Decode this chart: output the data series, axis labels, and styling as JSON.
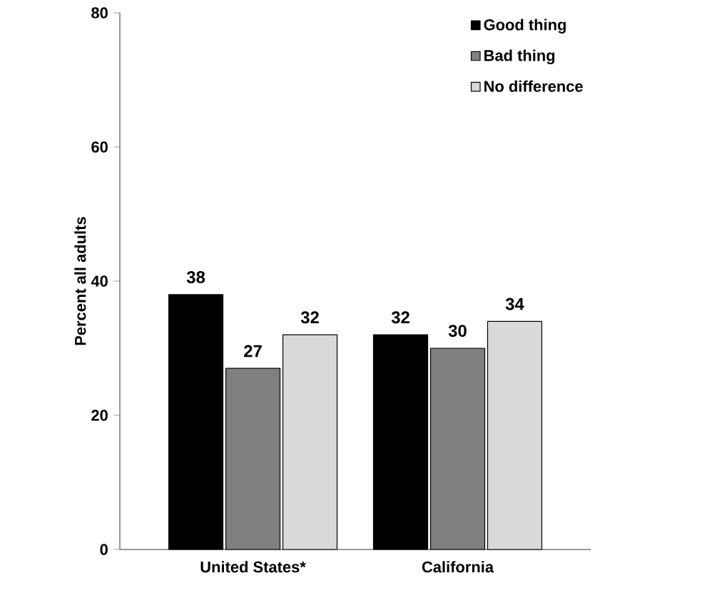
{
  "chart_data": {
    "type": "bar",
    "ylabel": "Percent all adults",
    "categories": [
      "United States*",
      "California"
    ],
    "series": [
      {
        "name": "Good thing",
        "color": "#000000",
        "values": [
          38,
          32
        ]
      },
      {
        "name": "Bad thing",
        "color": "#808080",
        "values": [
          27,
          30
        ]
      },
      {
        "name": "No difference",
        "color": "#d9d9d9",
        "values": [
          32,
          34
        ]
      }
    ],
    "ylim": [
      0,
      80
    ],
    "yticks": [
      0,
      20,
      40,
      60,
      80
    ],
    "data_labels": true,
    "legend": "top right",
    "grid": false
  }
}
